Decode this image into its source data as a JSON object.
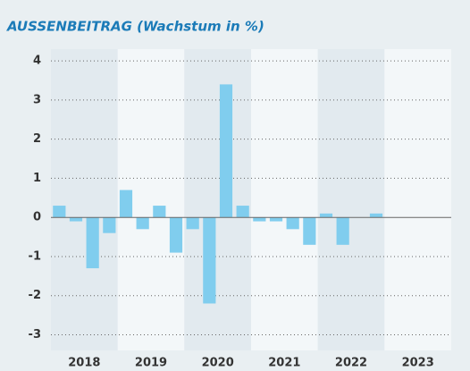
{
  "chart_data": {
    "type": "bar",
    "title": "AUSSENBEITRAG (Wachstum in %)",
    "categories": [
      "2018",
      null,
      null,
      null,
      "2019",
      null,
      null,
      null,
      "2020",
      null,
      null,
      null,
      "2021",
      null,
      null,
      null,
      "2022",
      null,
      null,
      null,
      "2023",
      null,
      null,
      null
    ],
    "values": [
      0.3,
      -0.1,
      -1.3,
      -0.4,
      0.7,
      -0.3,
      0.3,
      -0.9,
      -0.3,
      -2.2,
      3.4,
      0.3,
      -0.1,
      -0.1,
      -0.3,
      -0.7,
      0.1,
      -0.7,
      0,
      0.1,
      null,
      null,
      null,
      null
    ],
    "color": "#80cdee",
    "ylim": [
      -3.4,
      4.3
    ],
    "yticks": [
      -3,
      -2,
      -1,
      0,
      1,
      2,
      3,
      4
    ],
    "grid": true
  }
}
